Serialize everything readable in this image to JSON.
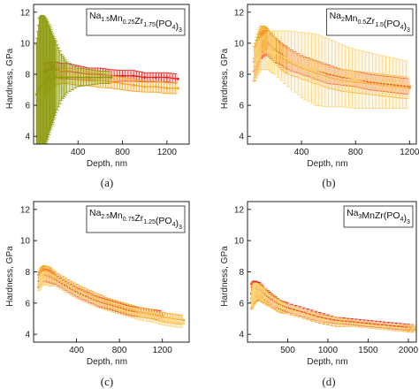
{
  "chart_data": [
    {
      "id": "a",
      "type": "line",
      "caption": "(a)",
      "title_parts": [
        [
          "Na",
          ""
        ],
        [
          "1.5",
          "sub"
        ],
        [
          "Mn",
          ""
        ],
        [
          "0.25",
          "sub"
        ],
        [
          "Zr",
          ""
        ],
        [
          "1.75",
          "sub"
        ],
        [
          "(PO",
          ""
        ],
        [
          "4",
          "sub"
        ],
        [
          ")",
          ""
        ],
        [
          "3",
          "sub"
        ]
      ],
      "xlabel": "Depth, nm",
      "ylabel": "Hardness, GPa",
      "xlim": [
        0,
        1400
      ],
      "ylim": [
        3.5,
        12.5
      ],
      "xticks": [
        400,
        800,
        1200
      ],
      "yticks": [
        4,
        6,
        8,
        10,
        12
      ],
      "series": [
        {
          "color": "#e8231f",
          "x": [
            100,
            150,
            200,
            250,
            300,
            400,
            500,
            600,
            700,
            800,
            900,
            1000,
            1100,
            1200,
            1300
          ],
          "y": [
            8.2,
            8.3,
            8.3,
            8.2,
            8.2,
            8.1,
            8.0,
            8.0,
            7.9,
            7.9,
            7.9,
            7.8,
            7.8,
            7.8,
            7.7
          ],
          "err": [
            0.5,
            0.5,
            0.5,
            0.5,
            0.5,
            0.45,
            0.4,
            0.4,
            0.4,
            0.35,
            0.35,
            0.3,
            0.3,
            0.3,
            0.3
          ]
        },
        {
          "color": "#f5a623",
          "x": [
            100,
            150,
            200,
            250,
            300,
            400,
            500,
            600,
            700,
            800,
            900,
            1000,
            1100,
            1200,
            1300
          ],
          "y": [
            7.3,
            7.6,
            7.8,
            7.9,
            7.9,
            7.8,
            7.7,
            7.6,
            7.5,
            7.4,
            7.3,
            7.2,
            7.2,
            7.1,
            7.1
          ],
          "err": [
            0.6,
            0.6,
            0.5,
            0.5,
            0.5,
            0.5,
            0.45,
            0.45,
            0.4,
            0.4,
            0.4,
            0.35,
            0.35,
            0.35,
            0.35
          ]
        },
        {
          "color": "#f9dc7a",
          "x": [
            100,
            150,
            200,
            300,
            400,
            500,
            600,
            700
          ],
          "y": [
            7.5,
            7.7,
            7.8,
            7.9,
            7.9,
            7.9,
            7.8,
            7.8
          ],
          "err": [
            0.5,
            0.5,
            0.4,
            0.4,
            0.4,
            0.35,
            0.35,
            0.35
          ]
        },
        {
          "color": "#8c9a0f",
          "x": [
            25,
            50,
            75,
            100,
            125,
            150,
            175,
            200,
            250,
            300,
            400,
            500,
            600,
            700
          ],
          "y": [
            6.7,
            7.1,
            7.3,
            7.5,
            7.6,
            7.7,
            7.7,
            7.8,
            7.8,
            7.8,
            7.8,
            7.8,
            7.8,
            7.8
          ],
          "err": [
            3.2,
            4.5,
            4.5,
            4.2,
            3.8,
            3.3,
            2.8,
            2.3,
            1.5,
            1.0,
            0.6,
            0.5,
            0.4,
            0.4
          ]
        }
      ]
    },
    {
      "id": "b",
      "type": "line",
      "caption": "(b)",
      "title_parts": [
        [
          "Na",
          ""
        ],
        [
          "2",
          "sub"
        ],
        [
          "Mn",
          ""
        ],
        [
          "0.5",
          "sub"
        ],
        [
          "Zr",
          ""
        ],
        [
          "1.5",
          "sub"
        ],
        [
          "(PO",
          ""
        ],
        [
          "4",
          "sub"
        ],
        [
          ")",
          ""
        ],
        [
          "3",
          "sub"
        ]
      ],
      "xlabel": "Depth, nm",
      "ylabel": "Hardness, GPa",
      "xlim": [
        0,
        1250
      ],
      "ylim": [
        3.5,
        12.5
      ],
      "xticks": [
        400,
        800,
        1200
      ],
      "yticks": [
        4,
        6,
        8,
        10,
        12
      ],
      "series": [
        {
          "color": "#e8231f",
          "x": [
            50,
            75,
            100,
            125,
            150,
            200,
            250,
            300,
            400,
            500,
            600,
            700,
            800,
            900,
            1000,
            1100,
            1200
          ],
          "y": [
            8.2,
            9.0,
            9.8,
            10.0,
            10.0,
            9.6,
            9.3,
            9.0,
            8.6,
            8.3,
            8.0,
            7.8,
            7.7,
            7.5,
            7.4,
            7.3,
            7.2
          ],
          "err": [
            0.6,
            0.7,
            0.8,
            0.8,
            0.8,
            0.8,
            0.7,
            0.7,
            0.6,
            0.6,
            0.6,
            0.5,
            0.5,
            0.5,
            0.5,
            0.5,
            0.5
          ]
        },
        {
          "color": "#f5a623",
          "x": [
            50,
            75,
            100,
            125,
            150,
            200,
            250,
            300,
            400,
            500,
            600,
            700,
            800,
            900,
            1000,
            1100,
            1200
          ],
          "y": [
            9.0,
            9.8,
            10.3,
            10.3,
            10.1,
            9.6,
            9.1,
            8.8,
            8.4,
            8.1,
            7.8,
            7.6,
            7.5,
            7.4,
            7.3,
            7.2,
            7.1
          ],
          "err": [
            0.8,
            0.8,
            0.8,
            0.8,
            0.8,
            0.8,
            0.8,
            0.8,
            0.7,
            0.7,
            0.7,
            0.7,
            0.7,
            0.7,
            0.7,
            0.7,
            0.7
          ]
        },
        {
          "color": "#fbd57a",
          "x": [
            50,
            75,
            100,
            150,
            200,
            300,
            400,
            500,
            600,
            700,
            800,
            900,
            1000,
            1100,
            1200
          ],
          "y": [
            8.5,
            9.0,
            9.3,
            9.5,
            9.4,
            9.0,
            8.6,
            8.3,
            8.1,
            7.9,
            7.7,
            7.6,
            7.5,
            7.4,
            7.3
          ],
          "err": [
            1.0,
            1.0,
            1.0,
            1.2,
            1.4,
            1.8,
            2.1,
            2.3,
            2.2,
            2.0,
            1.9,
            1.8,
            1.7,
            1.6,
            1.5
          ]
        }
      ]
    },
    {
      "id": "c",
      "type": "line",
      "caption": "(c)",
      "title_parts": [
        [
          "Na",
          ""
        ],
        [
          "2.5",
          "sub"
        ],
        [
          "Mn",
          ""
        ],
        [
          "0.75",
          "sub"
        ],
        [
          "Zr",
          ""
        ],
        [
          "1.25",
          "sub"
        ],
        [
          "(PO",
          ""
        ],
        [
          "4",
          "sub"
        ],
        [
          ")",
          ""
        ],
        [
          "3",
          "sub"
        ]
      ],
      "xlabel": "Depth, nm",
      "ylabel": "Hardness, GPa",
      "xlim": [
        0,
        1450
      ],
      "ylim": [
        3.5,
        12.5
      ],
      "xticks": [
        400,
        800,
        1200
      ],
      "yticks": [
        4,
        6,
        8,
        10,
        12
      ],
      "series": [
        {
          "color": "#e8231f",
          "x": [
            50,
            75,
            100,
            150,
            200,
            300,
            400,
            500,
            600,
            700,
            800,
            900,
            1000,
            1100,
            1200
          ],
          "y": [
            7.4,
            7.7,
            7.8,
            7.7,
            7.5,
            7.1,
            6.7,
            6.4,
            6.1,
            5.9,
            5.7,
            5.5,
            5.4,
            5.3,
            5.2
          ],
          "err": [
            0.4,
            0.4,
            0.4,
            0.4,
            0.3,
            0.3,
            0.3,
            0.3,
            0.3,
            0.3,
            0.3,
            0.3,
            0.3,
            0.3,
            0.3
          ]
        },
        {
          "color": "#f5a623",
          "x": [
            50,
            75,
            100,
            150,
            200,
            300,
            400,
            500,
            600,
            700,
            800,
            900,
            1000,
            1100,
            1200,
            1300,
            1400
          ],
          "y": [
            7.6,
            7.9,
            8.0,
            7.9,
            7.7,
            7.3,
            6.9,
            6.6,
            6.3,
            6.0,
            5.8,
            5.6,
            5.4,
            5.3,
            5.1,
            5.0,
            4.9
          ],
          "err": [
            0.4,
            0.4,
            0.4,
            0.4,
            0.3,
            0.3,
            0.3,
            0.3,
            0.3,
            0.3,
            0.3,
            0.3,
            0.3,
            0.3,
            0.3,
            0.3,
            0.3
          ]
        },
        {
          "color": "#fbd57a",
          "x": [
            50,
            75,
            100,
            150,
            200,
            300,
            400,
            500,
            600,
            700,
            800,
            900,
            1000,
            1100,
            1200,
            1300,
            1400
          ],
          "y": [
            7.2,
            7.5,
            7.6,
            7.5,
            7.4,
            7.0,
            6.6,
            6.3,
            6.0,
            5.8,
            5.6,
            5.4,
            5.2,
            5.1,
            4.9,
            4.8,
            4.7
          ],
          "err": [
            0.4,
            0.4,
            0.4,
            0.4,
            0.3,
            0.3,
            0.3,
            0.3,
            0.3,
            0.3,
            0.3,
            0.3,
            0.3,
            0.3,
            0.3,
            0.3,
            0.3
          ]
        }
      ]
    },
    {
      "id": "d",
      "type": "line",
      "caption": "(d)",
      "title_parts": [
        [
          "Na",
          ""
        ],
        [
          "3",
          "sub"
        ],
        [
          "MnZr(PO",
          ""
        ],
        [
          "4",
          "sub"
        ],
        [
          ")",
          ""
        ],
        [
          "3",
          "sub"
        ]
      ],
      "xlabel": "Depth, nm",
      "ylabel": "Hardness, GPa",
      "xlim": [
        0,
        2100
      ],
      "ylim": [
        3.5,
        12.5
      ],
      "xticks": [
        500,
        1000,
        1500,
        2000
      ],
      "yticks": [
        4,
        6,
        8,
        10,
        12
      ],
      "series": [
        {
          "color": "#e8231f",
          "x": [
            50,
            75,
            100,
            150,
            200,
            300,
            400,
            500,
            700,
            900,
            1100,
            1300,
            1500,
            1700,
            1900,
            2100
          ],
          "y": [
            6.6,
            6.8,
            6.9,
            6.8,
            6.6,
            6.2,
            5.9,
            5.7,
            5.4,
            5.1,
            4.9,
            4.8,
            4.7,
            4.6,
            4.5,
            4.4
          ],
          "err": [
            0.6,
            0.6,
            0.5,
            0.5,
            0.4,
            0.4,
            0.3,
            0.3,
            0.3,
            0.3,
            0.2,
            0.2,
            0.2,
            0.2,
            0.2,
            0.2
          ]
        },
        {
          "color": "#f5a623",
          "x": [
            50,
            75,
            100,
            150,
            200,
            300,
            400,
            500,
            700,
            900,
            1100,
            1300,
            1500,
            1700,
            1900,
            2100
          ],
          "y": [
            6.3,
            6.6,
            6.7,
            6.7,
            6.5,
            6.1,
            5.8,
            5.6,
            5.3,
            5.0,
            4.8,
            4.7,
            4.6,
            4.5,
            4.4,
            4.3
          ],
          "err": [
            0.7,
            0.7,
            0.6,
            0.5,
            0.5,
            0.4,
            0.4,
            0.3,
            0.3,
            0.3,
            0.3,
            0.2,
            0.2,
            0.2,
            0.2,
            0.2
          ]
        },
        {
          "color": "#fbd57a",
          "x": [
            50,
            75,
            100,
            150,
            200,
            300,
            400,
            500,
            700,
            900,
            1100,
            1300,
            1500,
            1700,
            1900,
            2100
          ],
          "y": [
            6.2,
            6.6,
            6.8,
            6.7,
            6.5,
            6.1,
            5.8,
            5.6,
            5.3,
            5.0,
            4.8,
            4.7,
            4.6,
            4.5,
            4.4,
            4.4
          ],
          "err": [
            0.5,
            0.5,
            0.5,
            0.4,
            0.4,
            0.3,
            0.3,
            0.3,
            0.3,
            0.2,
            0.2,
            0.2,
            0.2,
            0.2,
            0.2,
            0.2
          ]
        }
      ]
    }
  ]
}
